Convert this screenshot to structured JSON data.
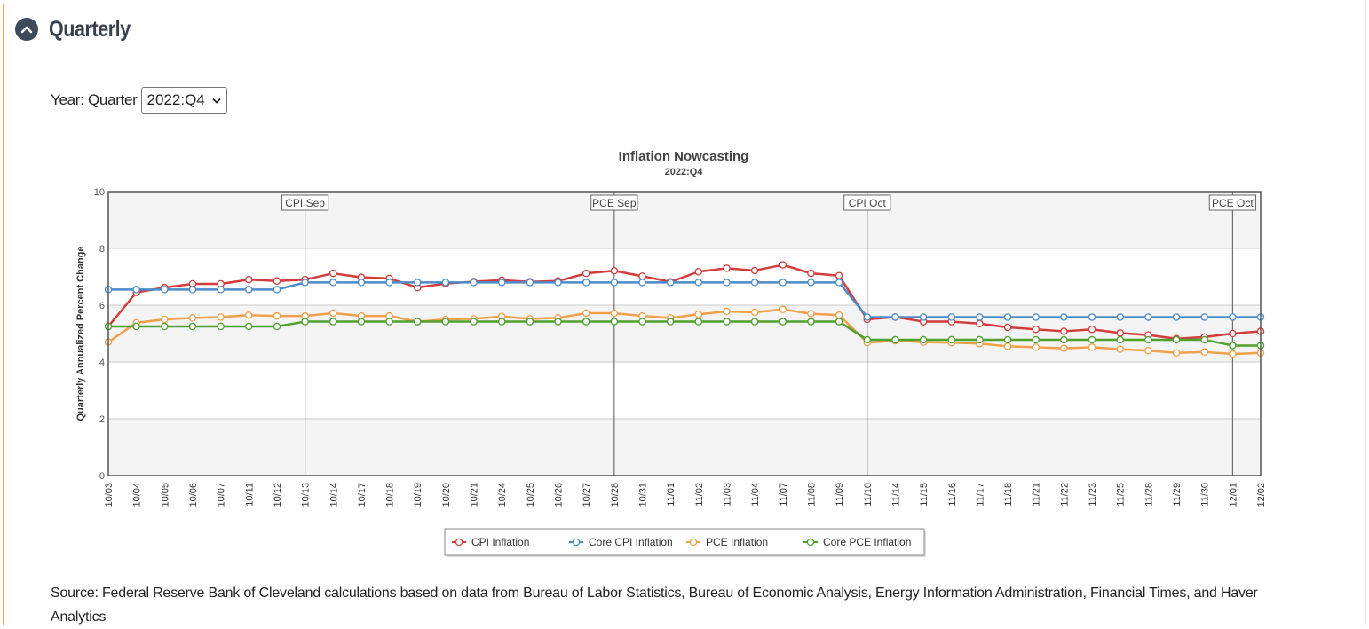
{
  "panel": {
    "title": "Quarterly",
    "toggle_icon": "chevron-up-icon"
  },
  "selector": {
    "label": "Year: Quarter",
    "selected": "2022:Q4"
  },
  "source": {
    "text": "Source: Federal Reserve Bank of Cleveland calculations based on data from Bureau of Labor Statistics, Bureau of Economic Analysis, Energy Information Administration, Financial Times, and Haver Analytics"
  },
  "colors": {
    "cpi": "#d23c3c",
    "core_cpi": "#4a8bc9",
    "pce": "#f0a04b",
    "core_pce": "#4fa02d",
    "band": "#f4f4f4",
    "grid": "#c9c9c9"
  },
  "chart_data": {
    "type": "line",
    "title": "Inflation Nowcasting",
    "subtitle": "2022:Q4",
    "xlabel": "",
    "ylabel": "Quarterly Annualized Percent Change",
    "ylim": [
      0,
      10
    ],
    "yticks": [
      0,
      2,
      4,
      6,
      8,
      10
    ],
    "grid": true,
    "legend_position": "bottom-center",
    "categories": [
      "10/03",
      "10/04",
      "10/05",
      "10/06",
      "10/07",
      "10/11",
      "10/12",
      "10/13",
      "10/14",
      "10/17",
      "10/18",
      "10/19",
      "10/20",
      "10/21",
      "10/24",
      "10/25",
      "10/26",
      "10/27",
      "10/28",
      "10/31",
      "11/01",
      "11/02",
      "11/03",
      "11/04",
      "11/07",
      "11/08",
      "11/09",
      "11/10",
      "11/14",
      "11/15",
      "11/16",
      "11/17",
      "11/18",
      "11/21",
      "11/22",
      "11/23",
      "11/25",
      "11/28",
      "11/29",
      "11/30",
      "12/01",
      "12/02"
    ],
    "series": [
      {
        "name": "CPI Inflation",
        "color_key": "cpi",
        "values": [
          5.25,
          6.45,
          6.62,
          6.75,
          6.75,
          6.9,
          6.85,
          6.9,
          7.12,
          6.98,
          6.94,
          6.62,
          6.76,
          6.83,
          6.88,
          6.82,
          6.85,
          7.12,
          7.21,
          7.02,
          6.82,
          7.18,
          7.3,
          7.22,
          7.42,
          7.12,
          7.04,
          5.5,
          5.58,
          5.42,
          5.42,
          5.35,
          5.22,
          5.15,
          5.08,
          5.15,
          5.02,
          4.95,
          4.82,
          4.88,
          5.0,
          5.08
        ]
      },
      {
        "name": "Core CPI Inflation",
        "color_key": "core_cpi",
        "values": [
          6.55,
          6.55,
          6.55,
          6.55,
          6.55,
          6.55,
          6.55,
          6.8,
          6.8,
          6.8,
          6.8,
          6.8,
          6.8,
          6.8,
          6.8,
          6.8,
          6.8,
          6.8,
          6.8,
          6.8,
          6.8,
          6.8,
          6.8,
          6.8,
          6.8,
          6.8,
          6.8,
          5.58,
          5.58,
          5.58,
          5.58,
          5.58,
          5.58,
          5.58,
          5.58,
          5.58,
          5.58,
          5.58,
          5.58,
          5.58,
          5.58,
          5.58
        ]
      },
      {
        "name": "PCE Inflation",
        "color_key": "pce",
        "values": [
          4.7,
          5.38,
          5.5,
          5.55,
          5.58,
          5.65,
          5.62,
          5.62,
          5.72,
          5.62,
          5.62,
          5.42,
          5.5,
          5.52,
          5.6,
          5.52,
          5.55,
          5.72,
          5.72,
          5.62,
          5.55,
          5.68,
          5.78,
          5.75,
          5.85,
          5.7,
          5.65,
          4.68,
          4.75,
          4.7,
          4.68,
          4.65,
          4.55,
          4.52,
          4.48,
          4.52,
          4.45,
          4.4,
          4.32,
          4.35,
          4.28,
          4.32
        ]
      },
      {
        "name": "Core PCE Inflation",
        "color_key": "core_pce",
        "values": [
          5.25,
          5.25,
          5.25,
          5.25,
          5.25,
          5.25,
          5.25,
          5.42,
          5.42,
          5.42,
          5.42,
          5.42,
          5.42,
          5.42,
          5.42,
          5.42,
          5.42,
          5.42,
          5.42,
          5.42,
          5.42,
          5.42,
          5.42,
          5.42,
          5.42,
          5.42,
          5.42,
          4.78,
          4.78,
          4.78,
          4.78,
          4.78,
          4.78,
          4.78,
          4.78,
          4.78,
          4.78,
          4.78,
          4.78,
          4.78,
          4.58,
          4.58
        ]
      }
    ],
    "annotations": [
      {
        "label": "CPI Sep",
        "x": "10/13"
      },
      {
        "label": "PCE Sep",
        "x": "10/28"
      },
      {
        "label": "CPI Oct",
        "x": "11/10"
      },
      {
        "label": "PCE Oct",
        "x": "12/01"
      }
    ]
  }
}
